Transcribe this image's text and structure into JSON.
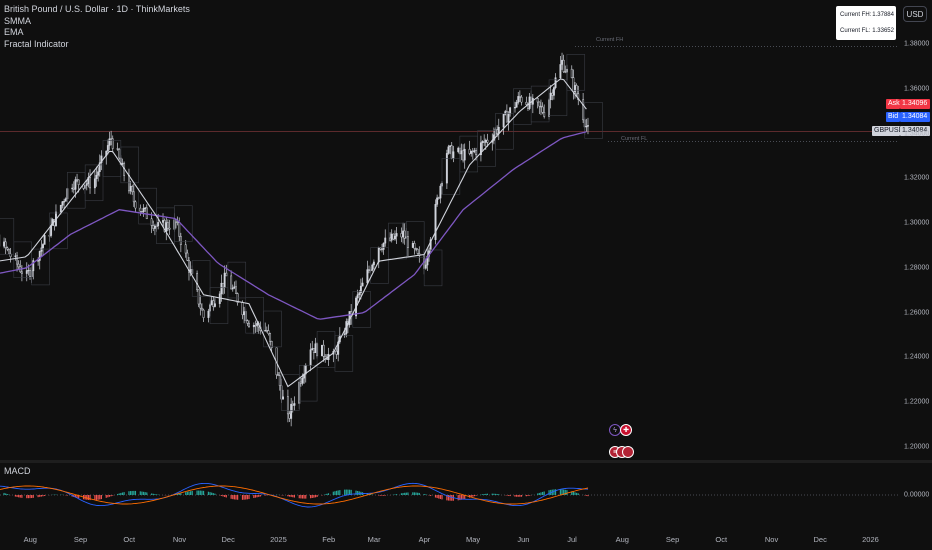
{
  "chart_title": "British Pound / U.S. Dollar · 1D · ThinkMarkets",
  "indicators": [
    "SMMA",
    "EMA",
    "Fractal Indicator"
  ],
  "macd_label": "MACD",
  "currency_button": "USD",
  "info_box": {
    "fh_label": "Current FH:",
    "fh_value": "1.37884",
    "fl_label": "Current FL:",
    "fl_value": "1.33652"
  },
  "fractal_labels": {
    "high": "Current FH",
    "low": "Current FL"
  },
  "price_badges": {
    "ask_label": "Ask",
    "ask_value": "1.34096",
    "bid_label": "Bid",
    "bid_value": "1.34084",
    "symbol_label": "GBPUSD",
    "symbol_value": "1.34084"
  },
  "colors": {
    "background": "#0f0f0f",
    "ask": "#f23645",
    "bid": "#2962ff",
    "smma": "#7e57c2",
    "ema": "#d1d4dc",
    "macd_line": "#2962ff",
    "signal_line": "#ff6d00",
    "hist_up": "#26a69a",
    "hist_down": "#ef5350"
  },
  "icons": [
    "lightning-icon",
    "uk-flag-icon",
    "us-flag-icon"
  ],
  "chart_data": {
    "type": "candlestick",
    "symbol": "GBPUSD",
    "timeframe": "1D",
    "y_ticks": [
      "1.38000",
      "1.36000",
      "1.34000",
      "1.32000",
      "1.30000",
      "1.28000",
      "1.26000",
      "1.24000",
      "1.22000",
      "1.20000"
    ],
    "ylim": [
      1.19,
      1.39
    ],
    "macd_ticks": [
      "0.00000"
    ],
    "x_ticks": [
      "Aug",
      "Sep",
      "Oct",
      "Nov",
      "Dec",
      "2025",
      "Feb",
      "Mar",
      "Apr",
      "May",
      "Jun",
      "Jul",
      "Aug",
      "Sep",
      "Oct",
      "Nov",
      "Dec",
      "2026"
    ],
    "close_path": [
      [
        "2024-07-01",
        1.284
      ],
      [
        "2024-07-15",
        1.296
      ],
      [
        "2024-08-05",
        1.276
      ],
      [
        "2024-08-20",
        1.298
      ],
      [
        "2024-09-01",
        1.318
      ],
      [
        "2024-09-15",
        1.318
      ],
      [
        "2024-09-26",
        1.338
      ],
      [
        "2024-10-10",
        1.31
      ],
      [
        "2024-10-25",
        1.298
      ],
      [
        "2024-11-05",
        1.3
      ],
      [
        "2024-11-22",
        1.258
      ],
      [
        "2024-12-06",
        1.276
      ],
      [
        "2024-12-20",
        1.256
      ],
      [
        "2024-12-31",
        1.252
      ],
      [
        "2025-01-13",
        1.212
      ],
      [
        "2025-01-27",
        1.245
      ],
      [
        "2025-02-10",
        1.24
      ],
      [
        "2025-02-24",
        1.265
      ],
      [
        "2025-03-10",
        1.29
      ],
      [
        "2025-03-25",
        1.295
      ],
      [
        "2025-04-07",
        1.28
      ],
      [
        "2025-04-21",
        1.332
      ],
      [
        "2025-05-05",
        1.33
      ],
      [
        "2025-05-20",
        1.34
      ],
      [
        "2025-06-05",
        1.356
      ],
      [
        "2025-06-20",
        1.35
      ],
      [
        "2025-07-01",
        1.372
      ],
      [
        "2025-07-10",
        1.358
      ],
      [
        "2025-07-17",
        1.341
      ]
    ],
    "ema_path": [
      [
        "2024-07-01",
        1.281
      ],
      [
        "2024-08-05",
        1.285
      ],
      [
        "2024-09-01",
        1.31
      ],
      [
        "2024-09-26",
        1.333
      ],
      [
        "2024-10-25",
        1.302
      ],
      [
        "2024-11-22",
        1.268
      ],
      [
        "2024-12-20",
        1.264
      ],
      [
        "2025-01-13",
        1.227
      ],
      [
        "2025-02-10",
        1.242
      ],
      [
        "2025-03-10",
        1.283
      ],
      [
        "2025-04-07",
        1.286
      ],
      [
        "2025-05-05",
        1.326
      ],
      [
        "2025-06-05",
        1.35
      ],
      [
        "2025-07-01",
        1.365
      ],
      [
        "2025-07-17",
        1.35
      ]
    ],
    "smma_path": [
      [
        "2024-07-01",
        1.275
      ],
      [
        "2024-08-05",
        1.28
      ],
      [
        "2024-09-01",
        1.295
      ],
      [
        "2024-10-01",
        1.306
      ],
      [
        "2024-11-05",
        1.302
      ],
      [
        "2024-12-01",
        1.282
      ],
      [
        "2025-01-01",
        1.268
      ],
      [
        "2025-02-01",
        1.257
      ],
      [
        "2025-03-01",
        1.26
      ],
      [
        "2025-04-01",
        1.277
      ],
      [
        "2025-05-01",
        1.306
      ],
      [
        "2025-06-01",
        1.324
      ],
      [
        "2025-07-01",
        1.338
      ],
      [
        "2025-07-17",
        1.341
      ]
    ],
    "current_fh": 1.37884,
    "current_fl": 1.33652,
    "last_price": 1.34084
  }
}
